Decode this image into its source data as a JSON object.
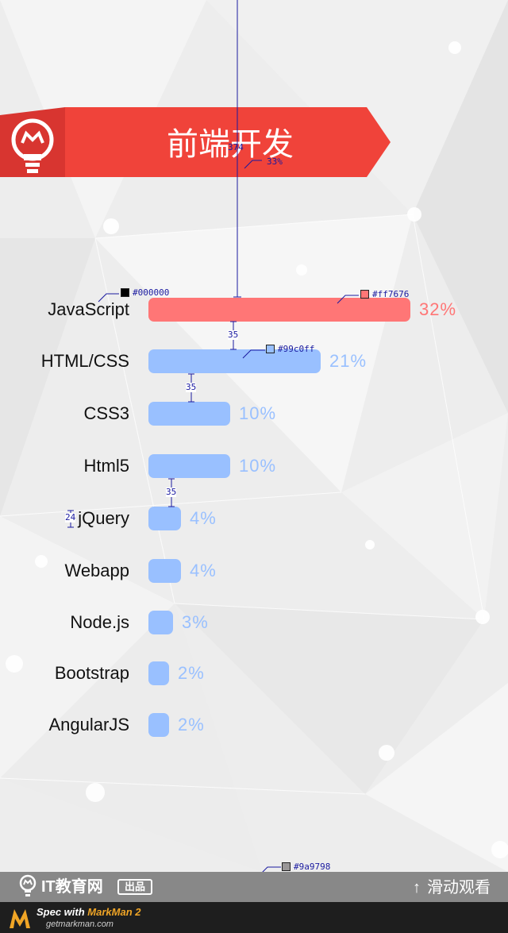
{
  "banner": {
    "title": "前端开发",
    "color": "#e8413a"
  },
  "chart_data": {
    "type": "bar",
    "orientation": "horizontal",
    "categories": [
      "JavaScript",
      "HTML/CSS",
      "CSS3",
      "Html5",
      "jQuery",
      "Webapp",
      "Node.js",
      "Bootstrap",
      "AngularJS"
    ],
    "values": [
      32,
      21,
      10,
      10,
      4,
      4,
      3,
      2,
      2
    ],
    "value_labels": [
      "32%",
      "21%",
      "10%",
      "10%",
      "4%",
      "4%",
      "3%",
      "2%",
      "2%"
    ],
    "unit": "%",
    "highlight_color": "#ff7676",
    "bar_color": "#99c0ff",
    "title": "",
    "xlabel": "",
    "ylabel": "",
    "xlim": [
      0,
      32
    ],
    "grid": false
  },
  "annotations": {
    "height_374": "374",
    "pct_33": "33%",
    "gap_35_a": "35",
    "gap_35_b": "35",
    "gap_35_c": "35",
    "height_24": "24",
    "color_text": "#000000",
    "color_highlight": "#ff7676",
    "color_bar": "#99c0ff",
    "color_footer": "#9a9798"
  },
  "footer": {
    "brand": "IT教育网",
    "out_badge": "出品",
    "scroll_hint": "滑动观看",
    "bg_color": "#9a9798"
  },
  "markman": {
    "spec_prefix": "Spec with ",
    "product": "MarkMan 2",
    "site": "getmarkman.com"
  }
}
